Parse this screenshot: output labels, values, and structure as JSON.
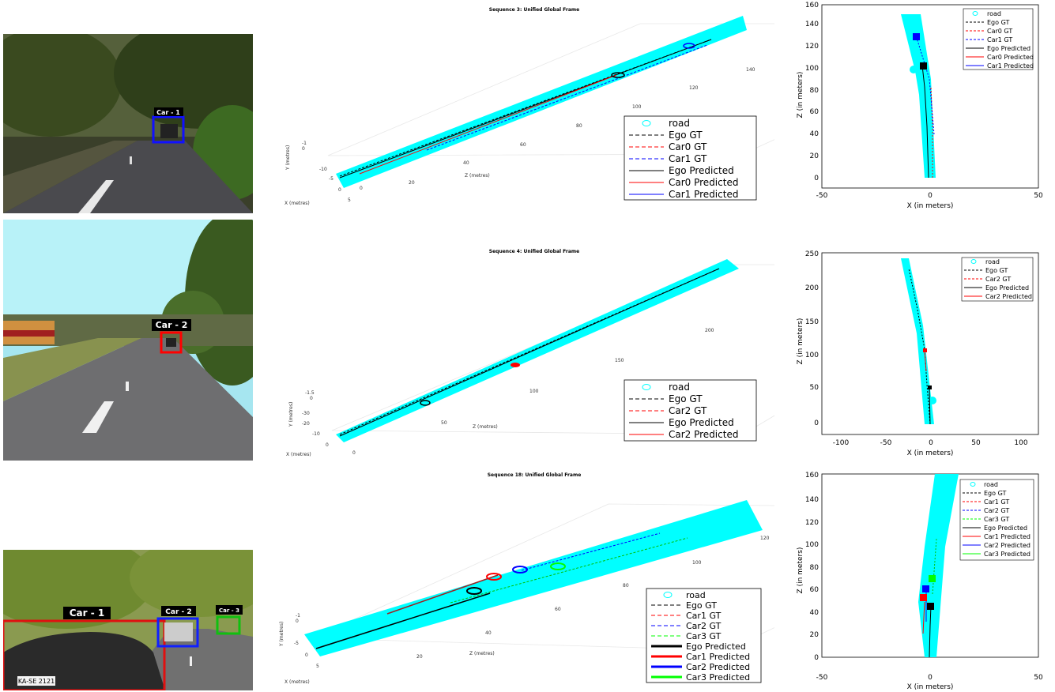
{
  "chart_data": [
    {
      "type": "line",
      "title": "Sequence 3: Unified Global Frame",
      "xlabel": "X (metres)",
      "ylabel": "Y (metres)",
      "zlabel": "Z (metres)",
      "x_ticks": [
        "5",
        "0",
        "-5",
        "-10"
      ],
      "y_ticks": [
        "-1",
        "0"
      ],
      "z_ticks": [
        "0",
        "20",
        "40",
        "60",
        "80",
        "100",
        "120",
        "140"
      ],
      "legend": [
        "road",
        "Ego GT",
        "Car0 GT",
        "Car1 GT",
        "Ego Predicted",
        "Car0 Predicted",
        "Car1 Predicted"
      ],
      "legend_position": "bottom-right",
      "series": [
        {
          "name": "Ego Predicted",
          "color": "#000000",
          "z": [
            0,
            20,
            40,
            60,
            80,
            100
          ],
          "x": [
            0,
            0,
            0,
            0,
            0,
            0
          ]
        },
        {
          "name": "Car0 Predicted",
          "color": "#ff0000",
          "z": [
            10,
            20,
            40,
            60,
            80,
            100
          ],
          "x": [
            0,
            0,
            0,
            0,
            0,
            0
          ]
        },
        {
          "name": "Car1 Predicted",
          "color": "#0000ff",
          "z": [
            40,
            60,
            80,
            100,
            120,
            130
          ],
          "x": [
            0,
            0,
            0,
            0,
            0,
            0
          ]
        }
      ]
    },
    {
      "type": "line",
      "xlabel": "X (in meters)",
      "ylabel": "Z (in meters)",
      "xlim": [
        -50,
        50
      ],
      "ylim": [
        -5,
        160
      ],
      "x_ticks": [
        "-50",
        "0",
        "50"
      ],
      "y_ticks": [
        "0",
        "20",
        "40",
        "60",
        "80",
        "100",
        "120",
        "140",
        "160"
      ],
      "legend": [
        "road",
        "Ego GT",
        "Car0 GT",
        "Car1 GT",
        "Ego Predicted",
        "Car0 Predicted",
        "Car1 Predicted"
      ],
      "legend_position": "top-right",
      "series": [
        {
          "name": "Ego GT",
          "color": "#000000",
          "x": [
            0,
            -1,
            -2.5
          ],
          "y": [
            0,
            50,
            103
          ]
        },
        {
          "name": "Car0 GT",
          "color": "#ff0000",
          "x": [
            1,
            1.5,
            2
          ],
          "y": [
            10,
            50,
            85
          ]
        },
        {
          "name": "Car1 GT",
          "color": "#0000ff",
          "x": [
            2,
            0,
            -6
          ],
          "y": [
            40,
            90,
            130
          ]
        },
        {
          "name": "Ego Predicted",
          "color": "#000000",
          "x": [
            0,
            -1,
            -2.5
          ],
          "y": [
            0,
            50,
            103
          ]
        },
        {
          "name": "Car0 Predicted",
          "color": "#ff0000",
          "x": [
            1,
            1.5,
            2
          ],
          "y": [
            10,
            50,
            85
          ]
        },
        {
          "name": "Car1 Predicted",
          "color": "#0000ff",
          "x": [
            2,
            0,
            -6
          ],
          "y": [
            40,
            90,
            130
          ]
        }
      ],
      "markers": [
        {
          "color": "#000000",
          "x": -2.5,
          "y": 103
        },
        {
          "color": "#0000ff",
          "x": -6,
          "y": 130
        }
      ]
    },
    {
      "type": "line",
      "title": "Sequence 4: Unified Global Frame",
      "xlabel": "X (metres)",
      "ylabel": "Y (metres)",
      "zlabel": "Z (metres)",
      "x_ticks": [
        "0",
        "-10",
        "-20",
        "-30"
      ],
      "y_ticks": [
        "-1.5",
        "0"
      ],
      "z_ticks": [
        "0",
        "50",
        "100",
        "150",
        "200"
      ],
      "legend": [
        "road",
        "Ego GT",
        "Car2 GT",
        "Ego Predicted",
        "Car2 Predicted"
      ],
      "legend_position": "bottom-right",
      "series": [
        {
          "name": "Ego Predicted",
          "color": "#000000",
          "z": [
            0,
            50,
            100,
            150,
            200,
            230
          ],
          "x": [
            0,
            0,
            0,
            0,
            0,
            0
          ]
        },
        {
          "name": "Car2 Predicted",
          "color": "#ff0000",
          "z": [
            100,
            110
          ],
          "x": [
            0,
            0
          ]
        }
      ]
    },
    {
      "type": "line",
      "xlabel": "X (in meters)",
      "ylabel": "Z (in meters)",
      "xlim": [
        -120,
        120
      ],
      "ylim": [
        -10,
        250
      ],
      "x_ticks": [
        "-100",
        "-50",
        "0",
        "50",
        "100"
      ],
      "y_ticks": [
        "0",
        "50",
        "100",
        "150",
        "200",
        "250"
      ],
      "legend": [
        "road",
        "Ego GT",
        "Car2 GT",
        "Ego Predicted",
        "Car2 Predicted"
      ],
      "legend_position": "top-right",
      "series": [
        {
          "name": "Ego GT",
          "color": "#000000",
          "x": [
            0,
            -3,
            -9,
            -15,
            -22
          ],
          "y": [
            0,
            50,
            100,
            160,
            225
          ]
        },
        {
          "name": "Car2 GT",
          "color": "#ff0000",
          "x": [
            -4,
            -3
          ],
          "y": [
            103,
            80
          ]
        },
        {
          "name": "Ego Predicted",
          "color": "#000000",
          "x": [
            0,
            -1,
            -2
          ],
          "y": [
            0,
            25,
            50
          ]
        },
        {
          "name": "Car2 Predicted",
          "color": "#ff0000",
          "x": [
            -4,
            -3
          ],
          "y": [
            103,
            80
          ]
        }
      ],
      "markers": [
        {
          "color": "#000000",
          "x": -1,
          "y": 50
        },
        {
          "color": "#ff0000",
          "x": -4,
          "y": 103
        }
      ]
    },
    {
      "type": "line",
      "title": "Sequence 18: Unified Global Frame",
      "xlabel": "X (metres)",
      "ylabel": "Y (metres)",
      "zlabel": "Z (metres)",
      "x_ticks": [
        "5",
        "0",
        "-5"
      ],
      "y_ticks": [
        "-1",
        "0"
      ],
      "z_ticks": [
        "20",
        "40",
        "60",
        "80",
        "100",
        "120"
      ],
      "legend": [
        "road",
        "Ego GT",
        "Car1 GT",
        "Car2 GT",
        "Car3 GT",
        "Ego Predicted",
        "Car1 Predicted",
        "Car2 Predicted",
        "Car3 Predicted"
      ],
      "legend_position": "bottom-right",
      "series": [
        {
          "name": "Ego Predicted",
          "color": "#000000",
          "z": [
            0,
            20,
            40
          ],
          "x": [
            0,
            0,
            0
          ]
        },
        {
          "name": "Car1 Predicted",
          "color": "#ff0000",
          "z": [
            30,
            50
          ],
          "x": [
            0,
            0
          ]
        },
        {
          "name": "Car2 Predicted",
          "color": "#0000ff",
          "z": [
            55,
            100
          ],
          "x": [
            0,
            0
          ]
        },
        {
          "name": "Car3 Predicted",
          "color": "#00ff00",
          "z": [
            40,
            120
          ],
          "x": [
            0,
            0
          ]
        }
      ]
    },
    {
      "type": "line",
      "xlabel": "X (in meters)",
      "ylabel": "Z (in meters)",
      "xlim": [
        -50,
        50
      ],
      "ylim": [
        -5,
        160
      ],
      "x_ticks": [
        "-50",
        "0",
        "50"
      ],
      "y_ticks": [
        "0",
        "20",
        "40",
        "60",
        "80",
        "100",
        "120",
        "140",
        "160"
      ],
      "legend": [
        "road",
        "Ego GT",
        "Car1 GT",
        "Car2 GT",
        "Car3 GT",
        "Ego Predicted",
        "Car1 Predicted",
        "Car2 Predicted",
        "Car3 Predicted"
      ],
      "legend_position": "top-right",
      "series": [
        {
          "name": "Ego GT",
          "color": "#000000",
          "x": [
            0,
            0.5,
            1
          ],
          "y": [
            0,
            25,
            45
          ]
        },
        {
          "name": "Car1 GT",
          "color": "#ff0000",
          "x": [
            -3,
            -1
          ],
          "y": [
            25,
            55
          ]
        },
        {
          "name": "Car2 GT",
          "color": "#0000ff",
          "x": [
            -1,
            0
          ],
          "y": [
            40,
            60
          ]
        },
        {
          "name": "Car3 GT",
          "color": "#00ff00",
          "x": [
            2,
            4
          ],
          "y": [
            68,
            100
          ]
        },
        {
          "name": "Ego Predicted",
          "color": "#000000",
          "x": [
            0,
            0.5,
            1
          ],
          "y": [
            0,
            25,
            45
          ]
        },
        {
          "name": "Car1 Predicted",
          "color": "#ff0000",
          "x": [
            -3,
            -2
          ],
          "y": [
            25,
            53
          ]
        },
        {
          "name": "Car2 Predicted",
          "color": "#0000ff",
          "x": [
            -1,
            -1
          ],
          "y": [
            40,
            60
          ]
        },
        {
          "name": "Car3 Predicted",
          "color": "#00ff00",
          "x": [
            2,
            2
          ],
          "y": [
            50,
            68
          ]
        }
      ],
      "markers": [
        {
          "color": "#000000",
          "x": 1,
          "y": 45
        },
        {
          "color": "#ff0000",
          "x": -3,
          "y": 53
        },
        {
          "color": "#0000ff",
          "x": -1,
          "y": 59
        },
        {
          "color": "#00ff00",
          "x": 2,
          "y": 68
        }
      ]
    }
  ],
  "photos": [
    {
      "labels": [
        "Car - 1"
      ],
      "box_colors": [
        "#1010ff"
      ]
    },
    {
      "labels": [
        "Car - 2"
      ],
      "box_colors": [
        "#ff0000"
      ]
    },
    {
      "labels": [
        "Car - 1",
        "Car - 2",
        "Car - 3"
      ],
      "box_colors": [
        "#e01010",
        "#1020ff",
        "#10c010"
      ],
      "plate": "KA-SE 2121"
    }
  ],
  "colors": {
    "road": "#00ffff",
    "ego": "#000000",
    "red": "#ff0000",
    "blue": "#0000ff",
    "green": "#00ff00"
  }
}
